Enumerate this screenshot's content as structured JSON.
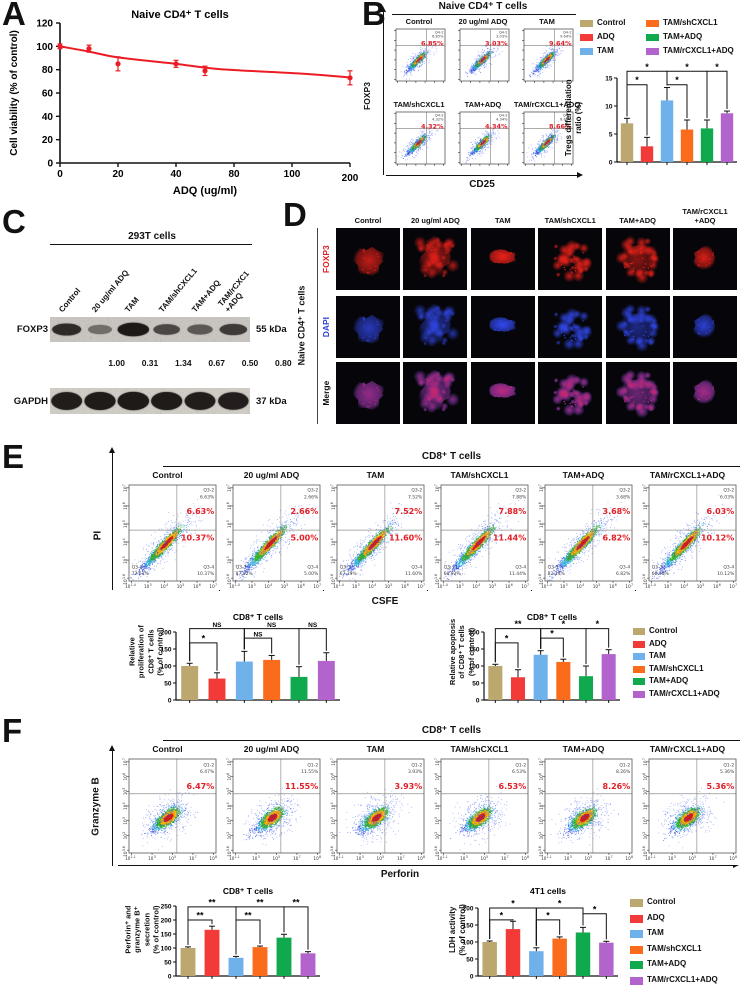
{
  "conditions": [
    "Control",
    "ADQ",
    "TAM",
    "TAM/shCXCL1",
    "TAM+ADQ",
    "TAM/rCXCL1+ADQ"
  ],
  "colors": [
    "#BCA76F",
    "#F23B38",
    "#6FB1EA",
    "#FB6B1C",
    "#10A94E",
    "#B264CC"
  ],
  "accent_red": "#E31E24",
  "panels": {
    "A": {
      "letter": "A",
      "title": "Naive CD4⁺ T cells",
      "xlabel": "ADQ (ug/ml)",
      "ylabel": "Cell viability (% of control)"
    },
    "B": {
      "letter": "B",
      "header": "Naive CD4⁺ T cells",
      "xlabel": "CD25",
      "ylabel": "FOXP3",
      "quad": "Q4-2",
      "plots": [
        {
          "title": "Control",
          "pct": "6.85%"
        },
        {
          "title": "20 ug/ml ADQ",
          "pct": "3.03%"
        },
        {
          "title": "TAM",
          "pct": "9.64%"
        },
        {
          "title": "TAM/shCXCL1",
          "pct": "4.32%"
        },
        {
          "title": "TAM+ADQ",
          "pct": "4.34%"
        },
        {
          "title": "TAM/rCXCL1+ADQ",
          "pct": "8.66%"
        }
      ]
    },
    "C": {
      "letter": "C",
      "header": "293T cells",
      "protein": "FOXP3",
      "mw_protein": "55 kDa",
      "loading": "GAPDH",
      "mw_loading": "37 kDa",
      "lanes": [
        [
          "Control"
        ],
        [
          "20 ug/ml ADQ"
        ],
        [
          "TAM"
        ],
        [
          "TAM/shCXCL1"
        ],
        [
          "TAM+ADQ"
        ],
        [
          "TAM/rCXC1",
          "+ADQ"
        ]
      ],
      "densitometry": [
        "1.00",
        "0.31",
        "1.34",
        "0.67",
        "0.50",
        "0.80"
      ]
    },
    "D": {
      "letter": "D",
      "side": "Naive CD4⁺ T cells",
      "rows": [
        "FOXP3",
        "DAPI",
        "Merge"
      ],
      "cols": [
        [
          "Control"
        ],
        [
          "20 ug/ml ADQ"
        ],
        [
          "TAM"
        ],
        [
          "TAM/shCXCL1"
        ],
        [
          "TAM+ADQ"
        ],
        [
          "TAM/rCXCL1",
          "+ADQ"
        ]
      ]
    },
    "E": {
      "letter": "E",
      "header": "CD8⁺ T cells",
      "xlabel": "CSFE",
      "ylabel": "PI",
      "quads": {
        "tr": "Q3-2",
        "bl": "Q3-3",
        "br": "Q3-4"
      },
      "xticks": [
        "10^1.4",
        "10^3",
        "10^4",
        "10^5",
        "10^6",
        "10^7"
      ],
      "yticks": [
        "10^1.6",
        "10^3",
        "10^4",
        "10^5",
        "10^6",
        "10^7"
      ],
      "plots": [
        {
          "title": "Control",
          "q2": "6.63%",
          "q4": "10.37%",
          "q3": "72.51%"
        },
        {
          "title": "20 ug/ml ADQ",
          "q2": "2.66%",
          "q4": "5.00%",
          "q3": "87.02%"
        },
        {
          "title": "TAM",
          "q2": "7.52%",
          "q4": "11.60%",
          "q3": "67.39%"
        },
        {
          "title": "TAM/shCXCL1",
          "q2": "7.88%",
          "q4": "11.44%",
          "q3": "68.92%"
        },
        {
          "title": "TAM+ADQ",
          "q2": "3.68%",
          "q4": "6.82%",
          "q3": "82.24%"
        },
        {
          "title": "TAM/rCXCL1+ADQ",
          "q2": "6.03%",
          "q4": "10.12%",
          "q3": "66.40%"
        }
      ]
    },
    "F": {
      "letter": "F",
      "header": "CD8⁺ T cells",
      "xlabel": "Perforin",
      "ylabel": "Granzyme B",
      "quad": "Q1-2",
      "xticks": [
        "10^1.1",
        "10^3",
        "10^5",
        "10^7",
        "10^8"
      ],
      "yticks": [
        "10^0.6",
        "10^2",
        "10^3",
        "10^4",
        "10^5",
        "10^6",
        "10^7"
      ],
      "plots": [
        {
          "title": "Control",
          "pct": "6.47%"
        },
        {
          "title": "20 ug/ml ADQ",
          "pct": "11.55%"
        },
        {
          "title": "TAM",
          "pct": "3.93%"
        },
        {
          "title": "TAM/shCXCL1",
          "pct": "6.53%"
        },
        {
          "title": "TAM+ADQ",
          "pct": "8.26%"
        },
        {
          "title": "TAM/rCXCL1+ADQ",
          "pct": "5.36%"
        }
      ]
    }
  },
  "chart_data": [
    {
      "id": "viability",
      "panel": "A",
      "type": "line",
      "title": "Naive CD4⁺ T cells",
      "xlabel": "ADQ (ug/ml)",
      "ylabel": "Cell viability (% of control)",
      "x": [
        0,
        10,
        20,
        40,
        60,
        200
      ],
      "y": [
        100,
        98,
        85,
        85,
        79,
        73
      ],
      "errors": [
        2,
        3,
        6,
        3,
        4,
        6
      ],
      "trend_x": [
        0,
        10,
        20,
        40,
        70,
        120,
        200
      ],
      "trend_y": [
        100,
        95.5,
        90.5,
        85,
        80.5,
        76.5,
        73.3
      ],
      "xtick_labels": [
        "0",
        "20",
        "40",
        "80",
        "100",
        "200"
      ],
      "xtick_values": [
        0,
        20,
        40,
        80,
        100,
        200
      ],
      "ylim": [
        0,
        120
      ],
      "yticks": [
        0,
        20,
        40,
        60,
        80,
        100,
        120
      ],
      "line_color": "#EC1C24"
    },
    {
      "id": "tregs",
      "panel": "B",
      "type": "bar",
      "title": "",
      "ylabel_lines": [
        "Tregs differentiation",
        "ratio (%)"
      ],
      "categories": [
        "Control",
        "ADQ",
        "TAM",
        "TAM/shCXCL1",
        "TAM+ADQ",
        "TAM/rCXCL1+ADQ"
      ],
      "values": [
        6.9,
        2.8,
        11.0,
        5.8,
        6.0,
        8.7
      ],
      "errors": [
        0.9,
        1.6,
        2.3,
        1.7,
        1.5,
        0.4
      ],
      "ylim": [
        0,
        15
      ],
      "yticks": [
        0,
        5,
        10,
        15
      ],
      "sig": [
        {
          "a": 0,
          "b": 1,
          "label": "*",
          "y": 13.8
        },
        {
          "a": 0,
          "b": 2,
          "label": "*",
          "y": 16.2
        },
        {
          "a": 2,
          "b": 3,
          "label": "*",
          "y": 13.8
        },
        {
          "a": 2,
          "b": 4,
          "label": "*",
          "y": 16.2
        },
        {
          "a": 4,
          "b": 5,
          "label": "*",
          "y": 16.2
        }
      ]
    },
    {
      "id": "proliferation",
      "panel": "E",
      "type": "bar",
      "title": "CD8⁺ T cells",
      "ylabel_lines": [
        "Relative",
        "proliferation of",
        "CD8⁺ T cells",
        "(% of control)"
      ],
      "categories": [
        "Control",
        "ADQ",
        "TAM",
        "TAM/shCXCL1",
        "TAM+ADQ",
        "TAM/rCXCL1+ADQ"
      ],
      "values": [
        100,
        63,
        113,
        118,
        68,
        115
      ],
      "errors": [
        8,
        17,
        30,
        13,
        30,
        24
      ],
      "ylim": [
        0,
        200
      ],
      "yticks": [
        0,
        50,
        100,
        150,
        200
      ],
      "sig": [
        {
          "a": 0,
          "b": 1,
          "label": "*",
          "y": 168
        },
        {
          "a": 0,
          "b": 2,
          "label": "NS",
          "y": 210
        },
        {
          "a": 2,
          "b": 3,
          "label": "NS",
          "y": 182
        },
        {
          "a": 2,
          "b": 4,
          "label": "NS",
          "y": 210
        },
        {
          "a": 4,
          "b": 5,
          "label": "NS",
          "y": 210
        }
      ]
    },
    {
      "id": "apoptosis",
      "panel": "E",
      "type": "bar",
      "title": "CD8⁺ T cells",
      "ylabel_lines": [
        "Relative apoptosis",
        "of CD8⁺ T cells",
        "(% of control)"
      ],
      "categories": [
        "Control",
        "ADQ",
        "TAM",
        "TAM/shCXCL1",
        "TAM+ADQ",
        "TAM/rCXCL1+ADQ"
      ],
      "values": [
        100,
        67,
        133,
        112,
        70,
        135
      ],
      "errors": [
        5,
        22,
        12,
        8,
        30,
        13
      ],
      "ylim": [
        0,
        200
      ],
      "yticks": [
        0,
        50,
        100,
        150,
        200
      ],
      "sig": [
        {
          "a": 0,
          "b": 1,
          "label": "*",
          "y": 168
        },
        {
          "a": 0,
          "b": 2,
          "label": "**",
          "y": 210
        },
        {
          "a": 2,
          "b": 3,
          "label": "*",
          "y": 182
        },
        {
          "a": 2,
          "b": 4,
          "label": "*",
          "y": 210
        },
        {
          "a": 4,
          "b": 5,
          "label": "*",
          "y": 210
        }
      ]
    },
    {
      "id": "secretion",
      "panel": "F",
      "type": "bar",
      "title": "CD8⁺ T cells",
      "ylabel_lines": [
        "Perforin⁺ and",
        "granzyme B⁺",
        "secretion",
        "(% of control)"
      ],
      "categories": [
        "Control",
        "ADQ",
        "TAM",
        "TAM/shCXCL1",
        "TAM+ADQ",
        "TAM/rCXCL1+ADQ"
      ],
      "values": [
        100,
        165,
        65,
        103,
        137,
        81
      ],
      "errors": [
        4,
        13,
        5,
        4,
        12,
        6
      ],
      "ylim": [
        0,
        250
      ],
      "yticks": [
        0,
        50,
        100,
        150,
        200,
        250
      ],
      "sig": [
        {
          "a": 0,
          "b": 1,
          "label": "**",
          "y": 200
        },
        {
          "a": 0,
          "b": 2,
          "label": "**",
          "y": 247
        },
        {
          "a": 2,
          "b": 3,
          "label": "**",
          "y": 200
        },
        {
          "a": 2,
          "b": 4,
          "label": "**",
          "y": 247
        },
        {
          "a": 4,
          "b": 5,
          "label": "**",
          "y": 247
        }
      ]
    },
    {
      "id": "ldh",
      "panel": "F",
      "type": "bar",
      "title": "4T1 cells",
      "ylabel_lines": [
        "LDH activity",
        "(% of control)"
      ],
      "categories": [
        "Control",
        "ADQ",
        "TAM",
        "TAM/shCXCL1",
        "TAM+ADQ",
        "TAM/rCXCL1+ADQ"
      ],
      "values": [
        100,
        138,
        73,
        110,
        128,
        98
      ],
      "errors": [
        3,
        23,
        10,
        5,
        15,
        4
      ],
      "ylim": [
        0,
        200
      ],
      "yticks": [
        0,
        50,
        100,
        150,
        200
      ],
      "sig": [
        {
          "a": 0,
          "b": 1,
          "label": "*",
          "y": 165
        },
        {
          "a": 0,
          "b": 2,
          "label": "*",
          "y": 200
        },
        {
          "a": 2,
          "b": 3,
          "label": "*",
          "y": 165
        },
        {
          "a": 2,
          "b": 4,
          "label": "*",
          "y": 200
        },
        {
          "a": 4,
          "b": 5,
          "label": "*",
          "y": 183
        }
      ]
    }
  ]
}
